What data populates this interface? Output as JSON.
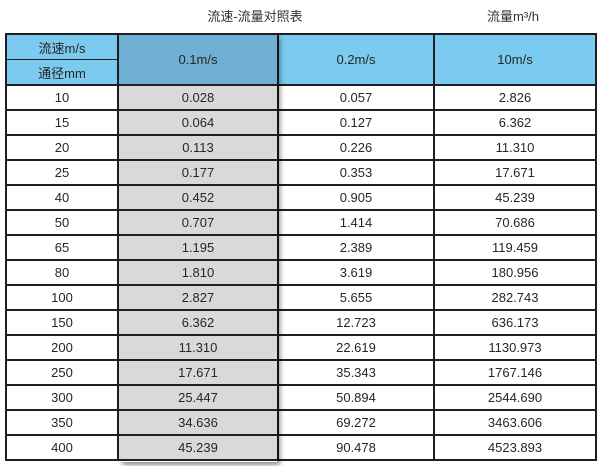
{
  "page": {
    "title_left": "流速-流量对照表",
    "title_right": "流量m³/h"
  },
  "table": {
    "corner_top": "流速m/s",
    "corner_bottom": "通径mm",
    "velocity_headers": [
      "0.1m/s",
      "0.2m/s",
      "10m/s"
    ],
    "rows": [
      {
        "diameter": "10",
        "values": [
          "0.028",
          "0.057",
          "2.826"
        ]
      },
      {
        "diameter": "15",
        "values": [
          "0.064",
          "0.127",
          "6.362"
        ]
      },
      {
        "diameter": "20",
        "values": [
          "0.113",
          "0.226",
          "11.310"
        ]
      },
      {
        "diameter": "25",
        "values": [
          "0.177",
          "0.353",
          "17.671"
        ]
      },
      {
        "diameter": "40",
        "values": [
          "0.452",
          "0.905",
          "45.239"
        ]
      },
      {
        "diameter": "50",
        "values": [
          "0.707",
          "1.414",
          "70.686"
        ]
      },
      {
        "diameter": "65",
        "values": [
          "1.195",
          "2.389",
          "119.459"
        ]
      },
      {
        "diameter": "80",
        "values": [
          "1.810",
          "3.619",
          "180.956"
        ]
      },
      {
        "diameter": "100",
        "values": [
          "2.827",
          "5.655",
          "282.743"
        ]
      },
      {
        "diameter": "150",
        "values": [
          "6.362",
          "12.723",
          "636.173"
        ]
      },
      {
        "diameter": "200",
        "values": [
          "11.310",
          "22.619",
          "1130.973"
        ]
      },
      {
        "diameter": "250",
        "values": [
          "17.671",
          "35.343",
          "1767.146"
        ]
      },
      {
        "diameter": "300",
        "values": [
          "25.447",
          "50.894",
          "2544.690"
        ]
      },
      {
        "diameter": "350",
        "values": [
          "34.636",
          "69.272",
          "3463.606"
        ]
      },
      {
        "diameter": "400",
        "values": [
          "45.239",
          "90.478",
          "4523.893"
        ]
      }
    ]
  },
  "colors": {
    "header_blue": "#7bcaf0",
    "header_blue_dark": "#6fafd3",
    "highlight_gray": "#d9d9d9",
    "border": "#1f1f1f",
    "text": "#262626"
  },
  "chart_data": {
    "type": "table",
    "title": "流速-流量对照表",
    "unit_label": "流量m³/h",
    "columns": [
      "通径mm",
      "0.1m/s",
      "0.2m/s",
      "10m/s"
    ],
    "rows": [
      [
        10,
        0.028,
        0.057,
        2.826
      ],
      [
        15,
        0.064,
        0.127,
        6.362
      ],
      [
        20,
        0.113,
        0.226,
        11.31
      ],
      [
        25,
        0.177,
        0.353,
        17.671
      ],
      [
        40,
        0.452,
        0.905,
        45.239
      ],
      [
        50,
        0.707,
        1.414,
        70.686
      ],
      [
        65,
        1.195,
        2.389,
        119.459
      ],
      [
        80,
        1.81,
        3.619,
        180.956
      ],
      [
        100,
        2.827,
        5.655,
        282.743
      ],
      [
        150,
        6.362,
        12.723,
        636.173
      ],
      [
        200,
        11.31,
        22.619,
        1130.973
      ],
      [
        250,
        17.671,
        35.343,
        1767.146
      ],
      [
        300,
        25.447,
        50.894,
        2544.69
      ],
      [
        350,
        34.636,
        69.272,
        3463.606
      ],
      [
        400,
        45.239,
        90.478,
        4523.893
      ]
    ]
  }
}
